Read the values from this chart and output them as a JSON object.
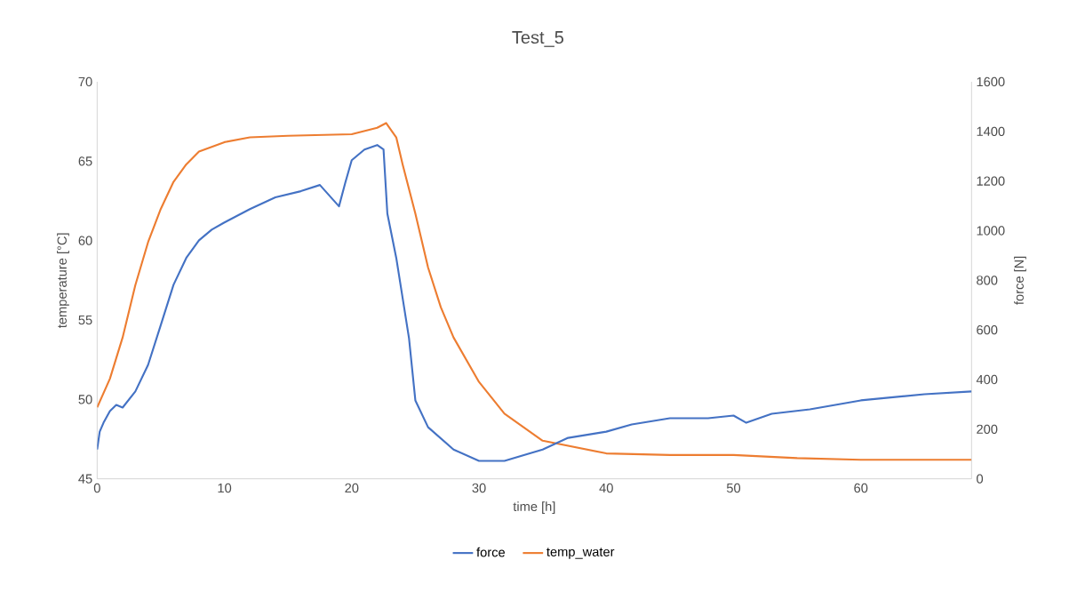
{
  "chart_data": {
    "type": "line",
    "title": "Test_5",
    "xlabel": "time [h]",
    "ylabel": "temperature [°C]",
    "y2label": "force [N]",
    "xlim": [
      0,
      68.7
    ],
    "xticks": [
      0,
      10,
      20,
      30,
      40,
      50,
      60
    ],
    "ylim": [
      45,
      70
    ],
    "yticks": [
      45,
      50,
      55,
      60,
      65,
      70
    ],
    "y2lim": [
      0,
      1600
    ],
    "y2ticks": [
      0,
      200,
      400,
      600,
      800,
      1000,
      1200,
      1400,
      1600
    ],
    "legend": "bottom",
    "grid": false,
    "marker": "none",
    "line_style": "solid",
    "series": [
      {
        "name": "force",
        "color": "#4472c4",
        "axis": "y2",
        "x": [
          0,
          0.2,
          0.5,
          1,
          1.5,
          2,
          3,
          4,
          5,
          6,
          7,
          8,
          9,
          10,
          12,
          14,
          16,
          17.5,
          19,
          19.5,
          20,
          21,
          22,
          22.5,
          22.8,
          23.5,
          24.5,
          25,
          26,
          28,
          30,
          32,
          35,
          37,
          40,
          42,
          45,
          48,
          50,
          51,
          53,
          56,
          60,
          65,
          68.7
        ],
        "values": [
          118,
          190,
          226,
          273,
          298,
          287,
          352,
          459,
          620,
          782,
          890,
          961,
          1004,
          1033,
          1087,
          1134,
          1159,
          1184,
          1098,
          1194,
          1284,
          1327,
          1345,
          1327,
          1069,
          890,
          567,
          316,
          208,
          118,
          72,
          72,
          118,
          165,
          190,
          219,
          244,
          244,
          255,
          226,
          262,
          280,
          316,
          341,
          352
        ]
      },
      {
        "name": "temp_water",
        "color": "#ed7d31",
        "x": [
          0,
          1,
          2,
          3,
          4,
          5,
          6,
          7,
          8,
          10,
          12,
          15,
          20,
          22,
          22.7,
          23.5,
          24,
          25,
          26,
          27,
          28,
          30,
          32,
          35,
          40,
          45,
          50,
          55,
          60,
          65,
          68.7
        ],
        "values": [
          49.5,
          51.3,
          53.9,
          57.2,
          59.9,
          62,
          63.7,
          64.8,
          65.6,
          66.2,
          66.5,
          66.6,
          66.7,
          67.1,
          67.4,
          66.5,
          64.8,
          61.7,
          58.3,
          55.8,
          53.9,
          51.1,
          49.1,
          47.4,
          46.6,
          46.5,
          46.5,
          46.3,
          46.2,
          46.2,
          46.2
        ]
      }
    ]
  }
}
